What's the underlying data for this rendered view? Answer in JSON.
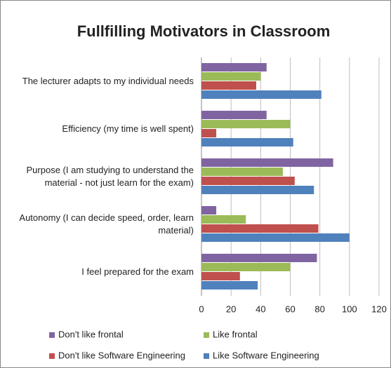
{
  "chart_data": {
    "type": "bar",
    "orientation": "horizontal",
    "title": "Fullfilling Motivators in Classroom",
    "categories": [
      "The lecturer adapts to my individual needs",
      "Efficiency (my time is well spent)",
      "Purpose (I am studying to understand the material - not just learn for the exam)",
      "Autonomy (I can decide speed, order, learn material)",
      "I feel prepared for the exam"
    ],
    "series": [
      {
        "name": "Don't like frontal",
        "color": "#8064a2",
        "values": [
          44,
          44,
          89,
          10,
          78
        ]
      },
      {
        "name": "Like frontal",
        "color": "#9bbb59",
        "values": [
          40,
          60,
          55,
          30,
          60
        ]
      },
      {
        "name": "Don't like Software Engineering",
        "color": "#c0504d",
        "values": [
          37,
          10,
          63,
          79,
          26
        ]
      },
      {
        "name": "Like Software Engineering",
        "color": "#4f81bd",
        "values": [
          81,
          62,
          76,
          100,
          38
        ]
      }
    ],
    "xlim": [
      0,
      120
    ],
    "xticks": [
      0,
      20,
      40,
      60,
      80,
      100,
      120
    ],
    "grid": true
  }
}
